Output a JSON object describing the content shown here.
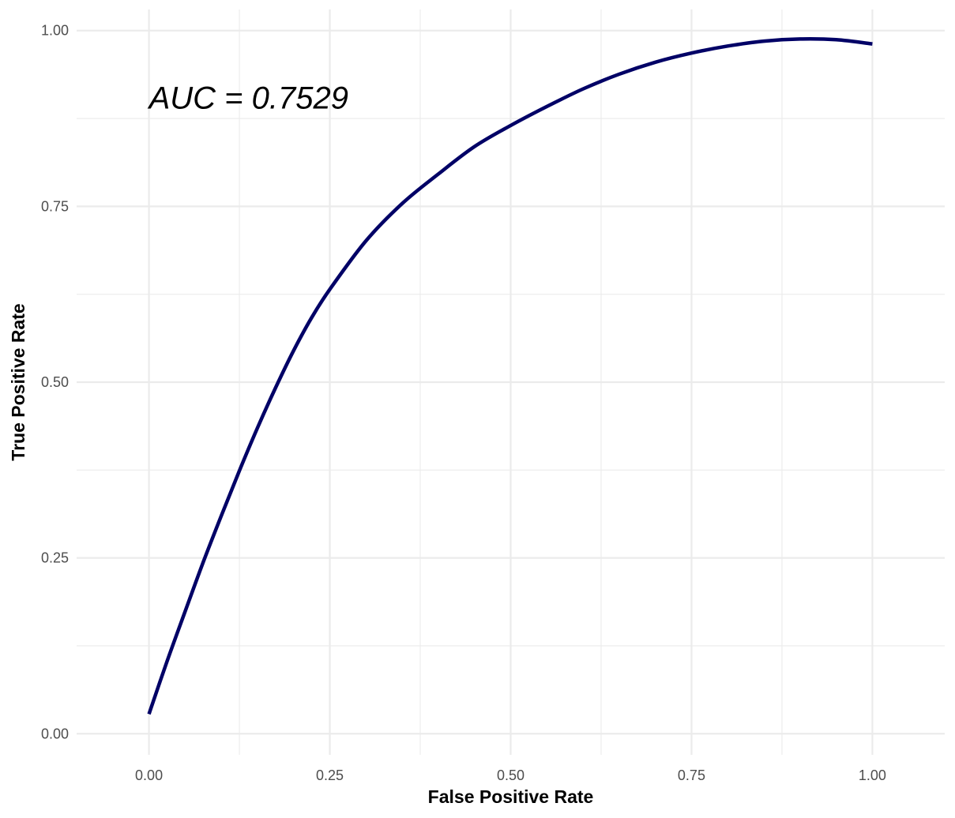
{
  "chart_data": {
    "type": "line",
    "title": "",
    "xlabel": "False Positive Rate",
    "ylabel": "True Positive Rate",
    "xlim": [
      -0.1,
      1.1
    ],
    "ylim": [
      -0.03,
      1.03
    ],
    "x_ticks": [
      0.0,
      0.25,
      0.5,
      0.75,
      1.0
    ],
    "x_tick_labels": [
      "0.00",
      "0.25",
      "0.50",
      "0.75",
      "1.00"
    ],
    "y_ticks": [
      0.0,
      0.25,
      0.5,
      0.75,
      1.0
    ],
    "y_tick_labels": [
      "0.00",
      "0.25",
      "0.50",
      "0.75",
      "1.00"
    ],
    "x_minor_ticks": [
      0.125,
      0.375,
      0.625,
      0.875
    ],
    "y_minor_ticks": [
      0.125,
      0.375,
      0.625,
      0.875
    ],
    "grid": true,
    "legend": "none",
    "annotations": [
      {
        "text": "AUC = 0.7529",
        "x": 0.0,
        "y": 0.905
      }
    ],
    "series": [
      {
        "color": "#000066",
        "x": [
          0.0,
          0.025,
          0.05,
          0.075,
          0.1,
          0.125,
          0.15,
          0.175,
          0.2,
          0.225,
          0.25,
          0.3,
          0.35,
          0.4,
          0.45,
          0.5,
          0.55,
          0.6,
          0.65,
          0.7,
          0.75,
          0.8,
          0.85,
          0.9,
          0.95,
          1.0
        ],
        "y": [
          0.028,
          0.103,
          0.174,
          0.244,
          0.31,
          0.374,
          0.435,
          0.492,
          0.545,
          0.592,
          0.632,
          0.701,
          0.754,
          0.796,
          0.835,
          0.865,
          0.892,
          0.917,
          0.938,
          0.955,
          0.968,
          0.978,
          0.985,
          0.988,
          0.987,
          0.981
        ]
      }
    ]
  }
}
